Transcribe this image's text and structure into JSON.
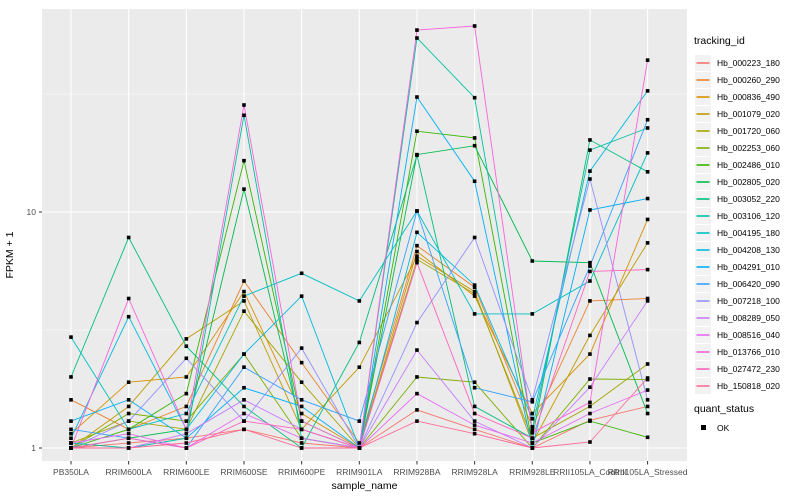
{
  "figure": {
    "x_axis": {
      "title": "sample_name",
      "tick_labels": [
        "PB350LA",
        "RRIM600LA",
        "RRIM600LE",
        "RRIM600SE",
        "RRIM600PE",
        "RRIM901LA",
        "RRIM928BA",
        "RRIM928LA",
        "RRIM928LE",
        "RRII105LA_Control",
        "RRII105LA_Stressed"
      ]
    },
    "y_axis": {
      "title": "FPKM + 1",
      "tick_labels": [
        "1",
        "10"
      ],
      "tick_values": [
        1,
        10
      ],
      "minor_break_values": [
        3.1623,
        31.623
      ],
      "scale": "log10"
    },
    "legend": {
      "tracking_title": "tracking_id",
      "quant_title": "quant_status",
      "quant_item_label": "OK",
      "quant_marker": "black-square"
    },
    "colors": {
      "panel_bg": "#EBEBEB",
      "grid": "#FFFFFF",
      "axis_text": "#4D4D4D",
      "title_text": "#000000",
      "point": "#000000",
      "legend_key_bg": "#F2F2F2",
      "tick_mark": "#333333"
    }
  },
  "chart_data": {
    "type": "line",
    "title": "",
    "xlabel": "sample_name",
    "ylabel": "FPKM + 1",
    "y_scale": "log10",
    "ylim": [
      1,
      73
    ],
    "y_ticks": [
      1,
      10
    ],
    "grid": true,
    "legend_position": "right",
    "point_marker": "black-square (quant_status = OK)",
    "categories": [
      "PB350LA",
      "RRIM600LA",
      "RRIM600LE",
      "RRIM600SE",
      "RRIM600PE",
      "RRIM901LA",
      "RRIM928BA",
      "RRIM928LA",
      "RRIM928LE",
      "RRII105LA_Control",
      "RRII105LA_Stressed"
    ],
    "series": [
      {
        "name": "Hb_000223_180",
        "color": "#F8766D",
        "values": [
          1.0,
          1.05,
          1.1,
          1.2,
          1.05,
          1.0,
          1.45,
          1.2,
          1.0,
          1.31,
          1.5
        ]
      },
      {
        "name": "Hb_000260_290",
        "color": "#EA8331",
        "values": [
          1.6,
          1.2,
          1.5,
          5.1,
          2.3,
          1.05,
          7.2,
          4.8,
          1.23,
          4.2,
          4.3
        ]
      },
      {
        "name": "Hb_000836_490",
        "color": "#D89000",
        "values": [
          1.15,
          1.9,
          2.0,
          4.6,
          1.4,
          1.0,
          6.8,
          4.4,
          1.4,
          2.5,
          9.3
        ]
      },
      {
        "name": "Hb_001079_020",
        "color": "#C09B00",
        "values": [
          1.0,
          1.5,
          2.9,
          4.2,
          1.2,
          2.2,
          6.5,
          4.6,
          1.05,
          3.0,
          7.4
        ]
      },
      {
        "name": "Hb_001720_060",
        "color": "#A3A500",
        "values": [
          1.05,
          1.3,
          1.2,
          3.8,
          1.9,
          1.0,
          6.3,
          4.5,
          1.1,
          1.5,
          2.27
        ]
      },
      {
        "name": "Hb_002253_060",
        "color": "#7CAE00",
        "values": [
          1.0,
          1.4,
          1.3,
          2.5,
          1.1,
          1.0,
          2.0,
          1.9,
          1.0,
          1.96,
          1.95
        ]
      },
      {
        "name": "Hb_002486_010",
        "color": "#39B600",
        "values": [
          1.0,
          1.2,
          1.7,
          16.5,
          1.3,
          1.0,
          22.0,
          20.6,
          1.05,
          1.3,
          1.11
        ]
      },
      {
        "name": "Hb_002805_020",
        "color": "#00BB4E",
        "values": [
          1.0,
          1.1,
          1.2,
          12.5,
          1.2,
          1.0,
          17.5,
          19.1,
          6.2,
          6.1,
          1.4
        ]
      },
      {
        "name": "Hb_003052_220",
        "color": "#00BF7D",
        "values": [
          2.0,
          7.8,
          2.7,
          1.5,
          1.0,
          2.8,
          17.4,
          1.5,
          1.1,
          20.2,
          14.8
        ]
      },
      {
        "name": "Hb_003106_120",
        "color": "#00C1A3",
        "values": [
          1.05,
          1.0,
          1.1,
          25.7,
          1.1,
          1.0,
          54.6,
          30.5,
          1.2,
          18.3,
          22.7
        ]
      },
      {
        "name": "Hb_004195_180",
        "color": "#00BFC4",
        "values": [
          2.95,
          1.2,
          1.4,
          4.4,
          5.5,
          4.2,
          10.1,
          3.7,
          3.7,
          5.1,
          17.8
        ]
      },
      {
        "name": "Hb_004208_130",
        "color": "#00BAE0",
        "values": [
          1.1,
          3.6,
          1.2,
          2.5,
          4.4,
          1.0,
          8.2,
          4.9,
          1.33,
          14.9,
          32.6
        ]
      },
      {
        "name": "Hb_004291_010",
        "color": "#00B0F6",
        "values": [
          1.3,
          1.6,
          1.1,
          1.8,
          1.5,
          1.0,
          30.7,
          13.5,
          1.0,
          10.2,
          11.4
        ]
      },
      {
        "name": "Hb_006420_090",
        "color": "#35A2FF",
        "values": [
          1.2,
          1.1,
          1.0,
          2.2,
          1.6,
          1.3,
          10.1,
          1.8,
          1.57,
          5.9,
          24.6
        ]
      },
      {
        "name": "Hb_007218_100",
        "color": "#9590FF",
        "values": [
          1.0,
          1.3,
          2.4,
          1.3,
          2.65,
          1.0,
          3.4,
          7.8,
          1.6,
          13.8,
          1.6
        ]
      },
      {
        "name": "Hb_008289_050",
        "color": "#C77CFF",
        "values": [
          1.0,
          1.0,
          1.15,
          1.6,
          1.2,
          1.0,
          2.6,
          1.3,
          1.0,
          1.81,
          4.2
        ]
      },
      {
        "name": "Hb_008516_040",
        "color": "#E76BF3",
        "values": [
          1.05,
          1.15,
          1.0,
          1.4,
          1.1,
          1.0,
          1.7,
          1.25,
          1.05,
          1.4,
          1.76
        ]
      },
      {
        "name": "Hb_013766_010",
        "color": "#FA62DB",
        "values": [
          1.0,
          4.3,
          1.2,
          28.4,
          1.3,
          1.0,
          59.0,
          61.4,
          1.16,
          1.56,
          44.0
        ]
      },
      {
        "name": "Hb_027472_230",
        "color": "#FF62BC",
        "values": [
          1.0,
          1.1,
          1.0,
          1.3,
          1.2,
          1.0,
          6.1,
          1.4,
          1.1,
          5.6,
          5.7
        ]
      },
      {
        "name": "Hb_150818_020",
        "color": "#FF6A98",
        "values": [
          1.0,
          1.0,
          1.05,
          1.2,
          1.0,
          1.0,
          1.3,
          1.15,
          1.0,
          1.06,
          1.98
        ]
      }
    ]
  }
}
